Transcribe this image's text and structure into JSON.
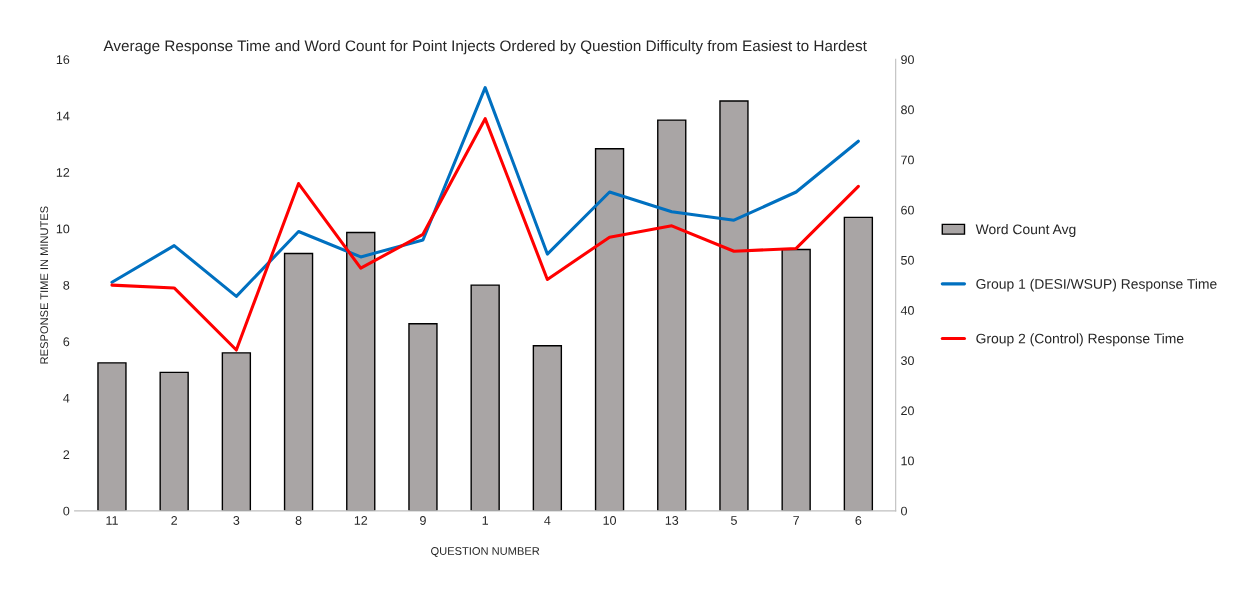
{
  "chart_data": {
    "type": "line",
    "title": "Average Response Time and Word Count for Point Injects Ordered by Question Difficulty from Easiest to Hardest",
    "xlabel": "QUESTION NUMBER",
    "ylabel": "RESPONSE TIME IN MINUTES",
    "categories": [
      "11",
      "2",
      "3",
      "8",
      "12",
      "9",
      "1",
      "4",
      "10",
      "13",
      "5",
      "7",
      "6"
    ],
    "series": [
      {
        "name": "Word Count Avg",
        "type": "bar",
        "axis": "y2",
        "color": "#a9a5a5",
        "values": [
          29.5,
          27.6,
          31.5,
          51.3,
          55.5,
          37.3,
          45,
          32.9,
          72.2,
          77.9,
          81.7,
          52.1,
          58.5
        ]
      },
      {
        "name": "Group 1 (DESI/WSUP) Response Time",
        "color": "#0070c0",
        "values": [
          8.1,
          9.4,
          7.6,
          9.9,
          9.0,
          9.6,
          15.0,
          9.1,
          11.3,
          10.6,
          10.3,
          11.3,
          13.1
        ]
      },
      {
        "name": "Group 2 (Control) Response Time",
        "color": "#ff0000",
        "values": [
          8.0,
          7.9,
          5.7,
          11.6,
          8.6,
          9.8,
          13.9,
          8.2,
          9.7,
          10.1,
          9.2,
          9.3,
          11.5
        ]
      }
    ],
    "ylim": [
      0,
      16
    ],
    "yticks": [
      0,
      2,
      4,
      6,
      8,
      10,
      12,
      14,
      16
    ],
    "y2lim": [
      0,
      90
    ],
    "y2ticks": [
      0,
      10,
      20,
      30,
      40,
      50,
      60,
      70,
      80,
      90
    ],
    "grid": false,
    "legend": "right",
    "marker": "none",
    "line_style": "solid"
  }
}
